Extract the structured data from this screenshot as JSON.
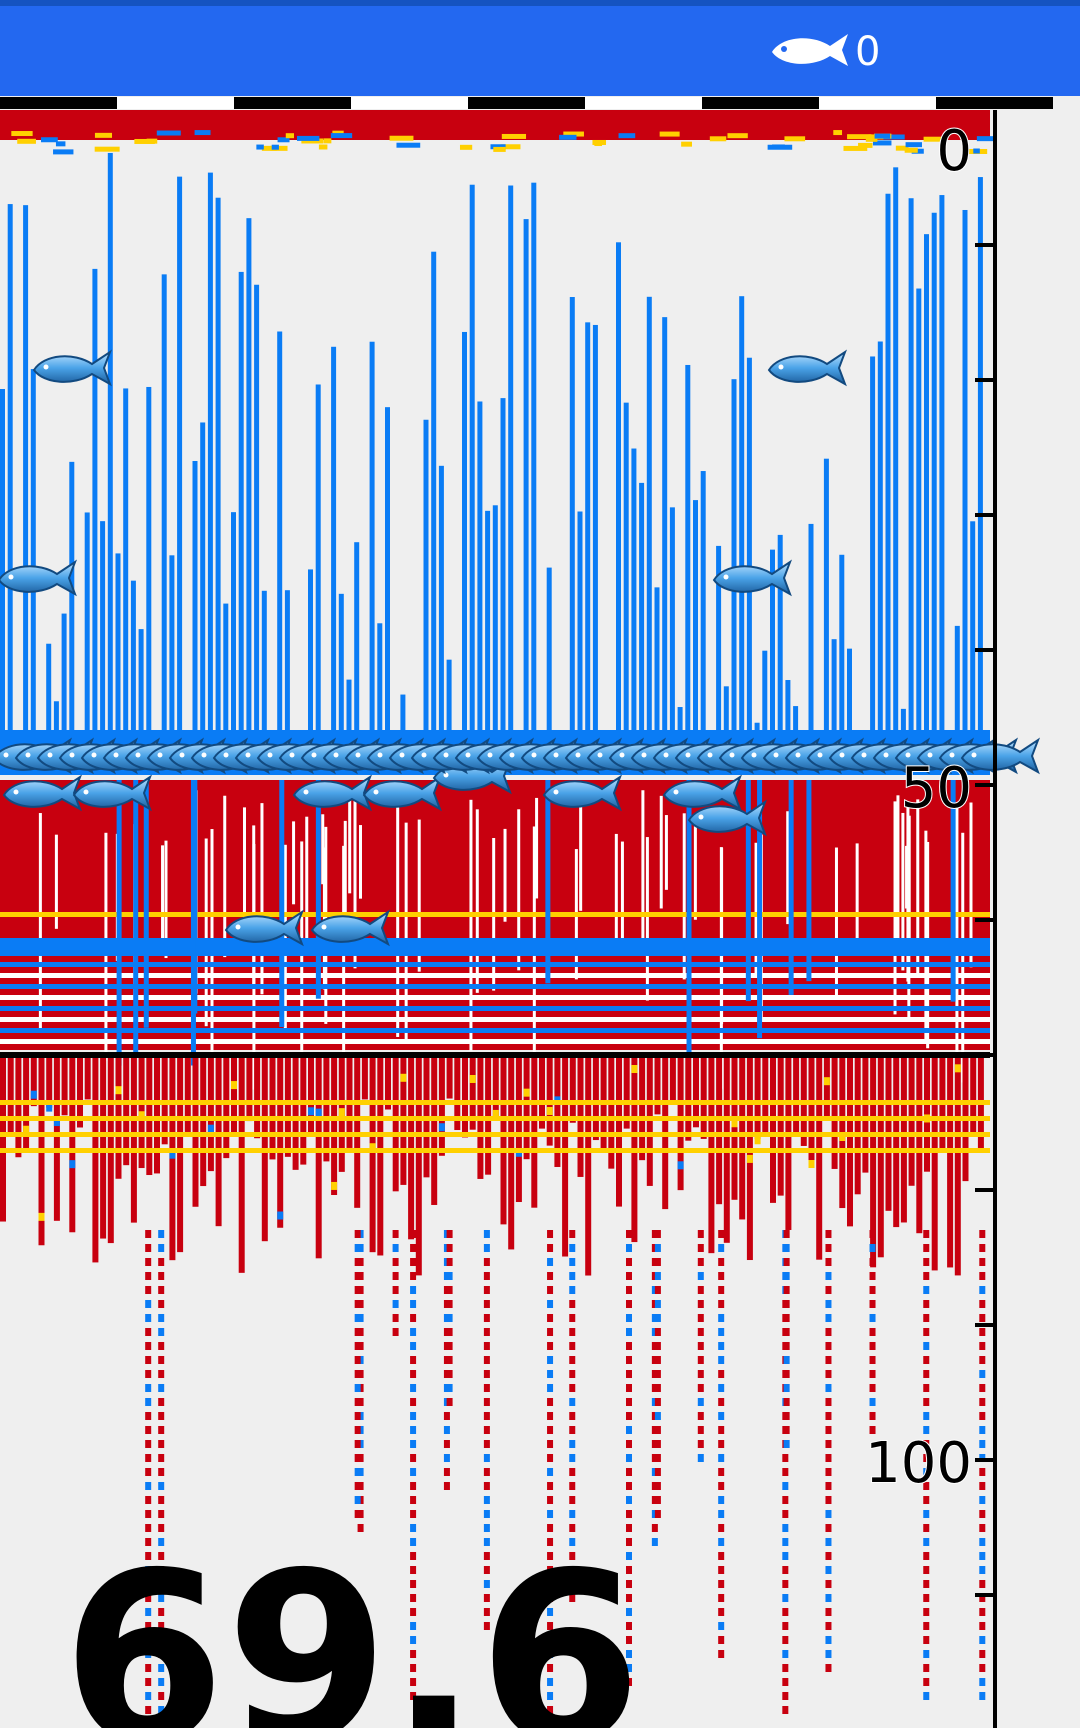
{
  "header": {
    "fish_count": "0"
  },
  "depth_scale": {
    "labels": [
      "0",
      "50",
      "100"
    ]
  },
  "depth_reading": "69.6"
}
